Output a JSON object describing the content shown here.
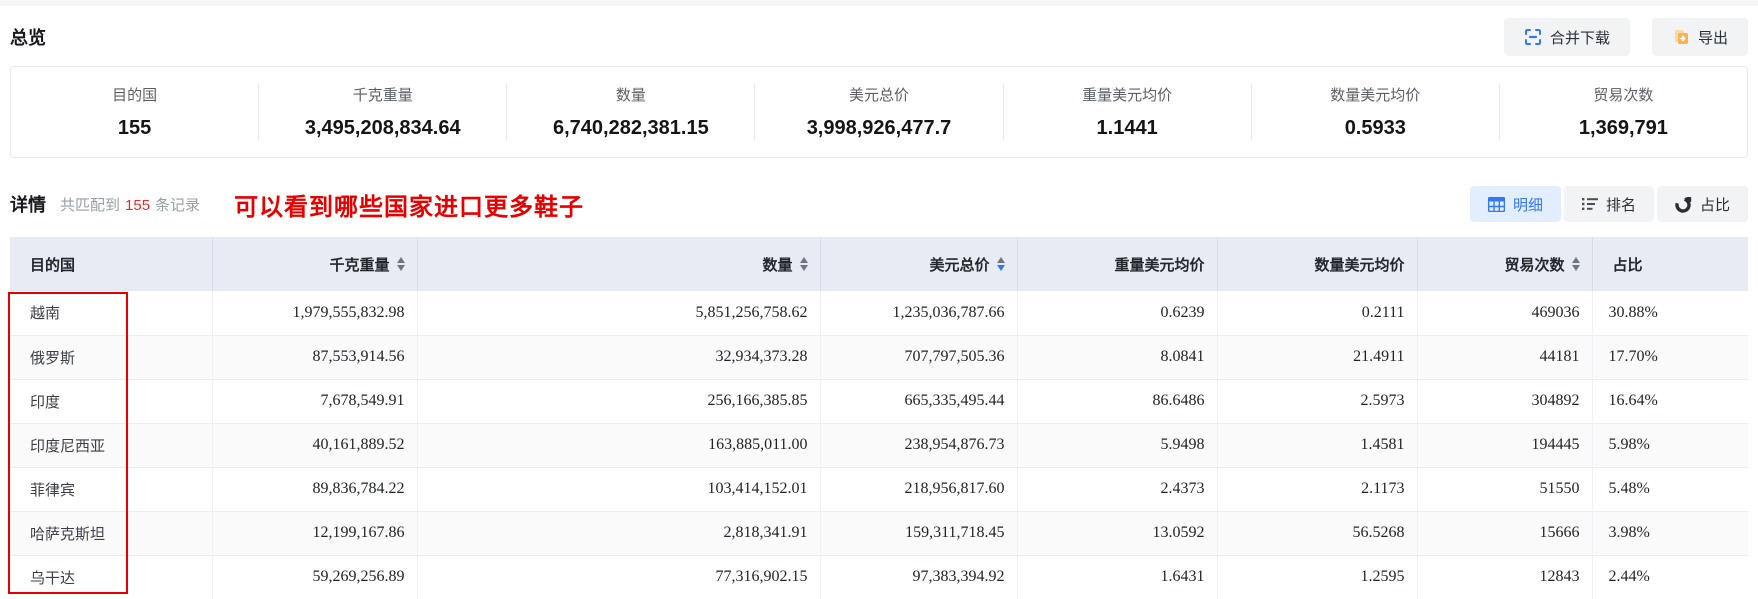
{
  "page": {
    "overview_title": "总览",
    "detail_title": "详情",
    "match_prefix": "共匹配到",
    "match_count": "155",
    "match_suffix": "条记录",
    "annotation": "可以看到哪些国家进口更多鞋子"
  },
  "toolbar": {
    "merge_download_label": "合并下载",
    "merge_download_icon": "merge-download-icon",
    "export_label": "导出",
    "export_icon": "export-icon"
  },
  "view_tabs": [
    {
      "label": "明细",
      "icon": "table-grid-icon",
      "active": true
    },
    {
      "label": "排名",
      "icon": "ranking-icon",
      "active": false
    },
    {
      "label": "占比",
      "icon": "pie-icon",
      "active": false
    }
  ],
  "stats": [
    {
      "label": "目的国",
      "value": "155"
    },
    {
      "label": "千克重量",
      "value": "3,495,208,834.64"
    },
    {
      "label": "数量",
      "value": "6,740,282,381.15"
    },
    {
      "label": "美元总价",
      "value": "3,998,926,477.7"
    },
    {
      "label": "重量美元均价",
      "value": "1.1441"
    },
    {
      "label": "数量美元均价",
      "value": "0.5933"
    },
    {
      "label": "贸易次数",
      "value": "1,369,791"
    }
  ],
  "table": {
    "columns": [
      {
        "label": "目的国",
        "align": "left",
        "sort": "none"
      },
      {
        "label": "千克重量",
        "align": "right",
        "sort": "inactive"
      },
      {
        "label": "数量",
        "align": "right",
        "sort": "inactive"
      },
      {
        "label": "美元总价",
        "align": "right",
        "sort": "desc"
      },
      {
        "label": "重量美元均价",
        "align": "right",
        "sort": "none"
      },
      {
        "label": "数量美元均价",
        "align": "right",
        "sort": "none"
      },
      {
        "label": "贸易次数",
        "align": "right",
        "sort": "inactive"
      },
      {
        "label": "占比",
        "align": "left",
        "sort": "none"
      }
    ],
    "rows": [
      [
        "越南",
        "1,979,555,832.98",
        "5,851,256,758.62",
        "1,235,036,787.66",
        "0.6239",
        "0.2111",
        "469036",
        "30.88%"
      ],
      [
        "俄罗斯",
        "87,553,914.56",
        "32,934,373.28",
        "707,797,505.36",
        "8.0841",
        "21.4911",
        "44181",
        "17.70%"
      ],
      [
        "印度",
        "7,678,549.91",
        "256,166,385.85",
        "665,335,495.44",
        "86.6486",
        "2.5973",
        "304892",
        "16.64%"
      ],
      [
        "印度尼西亚",
        "40,161,889.52",
        "163,885,011.00",
        "238,954,876.73",
        "5.9498",
        "1.4581",
        "194445",
        "5.98%"
      ],
      [
        "菲律宾",
        "89,836,784.22",
        "103,414,152.01",
        "218,956,817.60",
        "2.4373",
        "2.1173",
        "51550",
        "5.48%"
      ],
      [
        "哈萨克斯坦",
        "12,199,167.86",
        "2,818,341.91",
        "159,311,718.45",
        "13.0592",
        "56.5268",
        "15666",
        "3.98%"
      ],
      [
        "乌干达",
        "59,269,256.89",
        "77,316,902.15",
        "97,383,394.92",
        "1.6431",
        "1.2595",
        "12843",
        "2.44%"
      ]
    ]
  },
  "colors": {
    "accent_blue": "#3477f5",
    "active_tab_bg": "#e2eefd",
    "annotation_red": "#e60000",
    "match_count_red": "#e03131",
    "export_orange": "#f9b44d",
    "header_bg": "#e9ebf4",
    "button_gray_bg": "#f2f3f5",
    "stripe_gray": "#fafafa"
  }
}
